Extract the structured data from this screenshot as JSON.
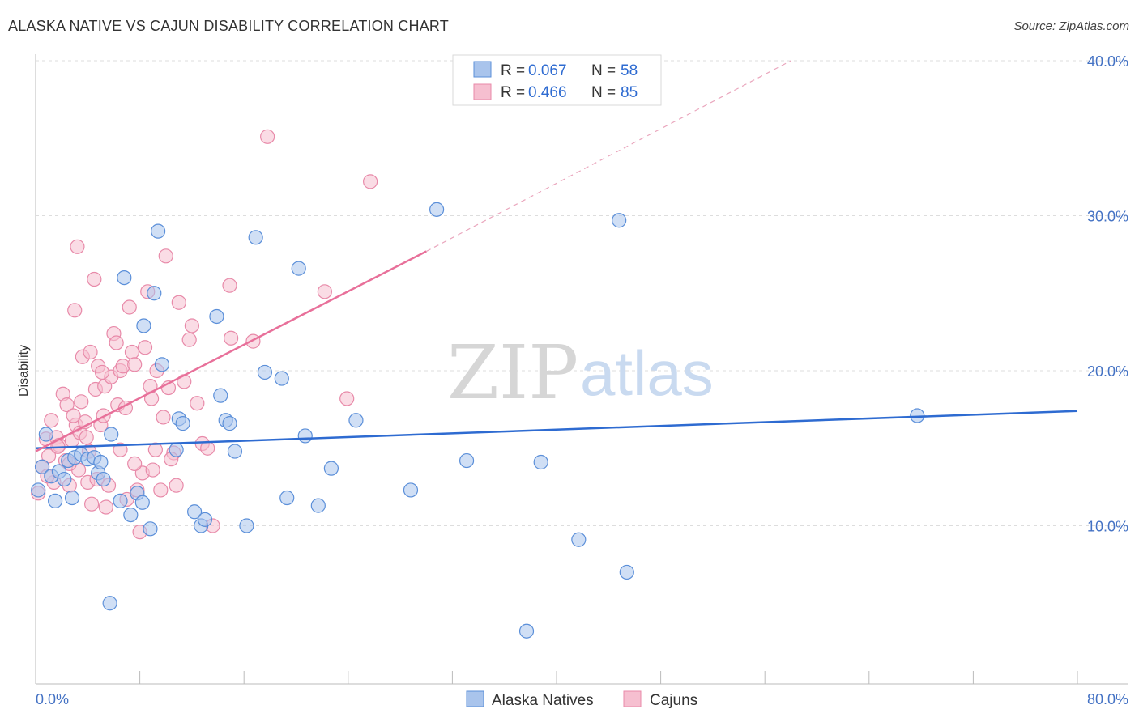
{
  "title": "ALASKA NATIVE VS CAJUN DISABILITY CORRELATION CHART",
  "source": "Source: ZipAtlas.com",
  "watermark": {
    "zip": "ZIP",
    "atlas": "atlas"
  },
  "colors": {
    "blue_fill": "#a9c4ec",
    "blue_stroke": "#5b8fd9",
    "blue_line": "#2e6bd1",
    "pink_fill": "#f6bfd0",
    "pink_stroke": "#e88aa9",
    "pink_line": "#e8709a",
    "grid": "#dddddd",
    "tick_text": "#4472c4"
  },
  "legend": {
    "r_label": "R =",
    "n_label": "N =",
    "rows": [
      {
        "series": "Alaska Natives",
        "r": "0.067",
        "n": "58"
      },
      {
        "series": "Cajuns",
        "r": "0.466",
        "n": "85"
      }
    ]
  },
  "chart_data": {
    "type": "scatter",
    "title": "ALASKA NATIVE VS CAJUN DISABILITY CORRELATION CHART",
    "xlabel": "",
    "ylabel": "Disability",
    "xlim": [
      0,
      80
    ],
    "ylim": [
      0,
      40
    ],
    "x_tick_labels": [
      "0.0%",
      "80.0%"
    ],
    "y_ticks": [
      10,
      20,
      30,
      40
    ],
    "y_tick_labels": [
      "10.0%",
      "20.0%",
      "30.0%",
      "40.0%"
    ],
    "grid": true,
    "legend_position": "top-center",
    "series": [
      {
        "name": "Alaska Natives",
        "color": "#5b8fd9",
        "trend": {
          "x0": 0,
          "y0": 15.0,
          "x1": 80,
          "y1": 17.4
        },
        "points": [
          [
            0.2,
            12.3
          ],
          [
            0.5,
            13.8
          ],
          [
            0.8,
            15.9
          ],
          [
            1.2,
            13.2
          ],
          [
            1.5,
            11.6
          ],
          [
            1.8,
            13.5
          ],
          [
            2.2,
            13.0
          ],
          [
            2.5,
            14.2
          ],
          [
            2.8,
            11.8
          ],
          [
            3.0,
            14.4
          ],
          [
            3.5,
            14.6
          ],
          [
            4.0,
            14.3
          ],
          [
            4.5,
            14.4
          ],
          [
            4.8,
            13.4
          ],
          [
            5.0,
            14.1
          ],
          [
            5.2,
            13.0
          ],
          [
            5.8,
            15.9
          ],
          [
            6.5,
            11.6
          ],
          [
            6.8,
            26.0
          ],
          [
            7.3,
            10.7
          ],
          [
            7.8,
            12.1
          ],
          [
            8.2,
            11.5
          ],
          [
            8.3,
            22.9
          ],
          [
            8.8,
            9.8
          ],
          [
            9.1,
            25.0
          ],
          [
            9.4,
            29.0
          ],
          [
            9.7,
            20.4
          ],
          [
            10.8,
            14.9
          ],
          [
            11.0,
            16.9
          ],
          [
            11.3,
            16.6
          ],
          [
            12.2,
            10.9
          ],
          [
            12.7,
            10.0
          ],
          [
            13.0,
            10.4
          ],
          [
            13.9,
            23.5
          ],
          [
            14.2,
            18.4
          ],
          [
            14.6,
            16.8
          ],
          [
            14.9,
            16.6
          ],
          [
            15.3,
            14.8
          ],
          [
            16.2,
            10.0
          ],
          [
            16.9,
            28.6
          ],
          [
            17.6,
            19.9
          ],
          [
            18.9,
            19.5
          ],
          [
            19.3,
            11.8
          ],
          [
            20.2,
            26.6
          ],
          [
            20.7,
            15.8
          ],
          [
            21.7,
            11.3
          ],
          [
            22.7,
            13.7
          ],
          [
            24.6,
            16.8
          ],
          [
            28.8,
            12.3
          ],
          [
            30.8,
            30.4
          ],
          [
            33.1,
            14.2
          ],
          [
            37.7,
            3.2
          ],
          [
            38.8,
            14.1
          ],
          [
            41.7,
            9.1
          ],
          [
            44.8,
            29.7
          ],
          [
            45.4,
            7.0
          ],
          [
            5.7,
            5.0
          ],
          [
            67.7,
            17.1
          ]
        ]
      },
      {
        "name": "Cajuns",
        "color": "#e88aa9",
        "trend": {
          "x0": 0,
          "y0": 14.8,
          "x1": 30,
          "y1": 27.7,
          "dash_x1": 58,
          "dash_y1": 40
        },
        "points": [
          [
            0.2,
            12.1
          ],
          [
            0.5,
            13.8
          ],
          [
            0.8,
            15.6
          ],
          [
            1.0,
            14.5
          ],
          [
            1.2,
            16.8
          ],
          [
            1.4,
            12.8
          ],
          [
            1.6,
            15.7
          ],
          [
            1.8,
            15.2
          ],
          [
            2.1,
            18.5
          ],
          [
            2.3,
            14.2
          ],
          [
            2.4,
            17.8
          ],
          [
            2.6,
            12.6
          ],
          [
            2.8,
            15.5
          ],
          [
            3.0,
            23.9
          ],
          [
            3.1,
            16.5
          ],
          [
            3.3,
            13.6
          ],
          [
            3.4,
            16.0
          ],
          [
            3.5,
            18.0
          ],
          [
            3.6,
            20.9
          ],
          [
            3.8,
            16.7
          ],
          [
            4.0,
            12.8
          ],
          [
            4.1,
            14.8
          ],
          [
            4.2,
            21.2
          ],
          [
            4.3,
            11.4
          ],
          [
            4.5,
            25.9
          ],
          [
            4.6,
            18.8
          ],
          [
            4.8,
            20.3
          ],
          [
            5.0,
            16.5
          ],
          [
            5.2,
            17.1
          ],
          [
            5.3,
            19.0
          ],
          [
            5.4,
            11.2
          ],
          [
            5.6,
            12.6
          ],
          [
            5.8,
            19.6
          ],
          [
            6.0,
            22.4
          ],
          [
            6.2,
            21.8
          ],
          [
            6.3,
            17.8
          ],
          [
            6.5,
            20.0
          ],
          [
            6.7,
            20.3
          ],
          [
            7.0,
            11.7
          ],
          [
            7.2,
            24.1
          ],
          [
            7.4,
            21.2
          ],
          [
            7.6,
            20.4
          ],
          [
            7.8,
            12.3
          ],
          [
            8.0,
            9.6
          ],
          [
            8.2,
            13.4
          ],
          [
            8.4,
            21.5
          ],
          [
            8.6,
            25.1
          ],
          [
            8.8,
            19.0
          ],
          [
            9.0,
            13.6
          ],
          [
            9.2,
            14.9
          ],
          [
            9.6,
            12.3
          ],
          [
            9.8,
            17.0
          ],
          [
            10.0,
            27.4
          ],
          [
            10.2,
            18.9
          ],
          [
            10.6,
            14.7
          ],
          [
            10.8,
            12.6
          ],
          [
            11.0,
            24.4
          ],
          [
            11.4,
            19.3
          ],
          [
            11.8,
            22.0
          ],
          [
            12.0,
            22.9
          ],
          [
            12.4,
            17.9
          ],
          [
            12.8,
            15.3
          ],
          [
            13.2,
            15.0
          ],
          [
            13.6,
            10.0
          ],
          [
            14.9,
            25.5
          ],
          [
            15.0,
            22.1
          ],
          [
            16.7,
            21.9
          ],
          [
            17.8,
            35.1
          ],
          [
            22.2,
            25.1
          ],
          [
            23.9,
            18.2
          ],
          [
            25.7,
            32.2
          ],
          [
            6.5,
            14.9
          ],
          [
            2.6,
            14.0
          ],
          [
            3.9,
            15.7
          ],
          [
            5.1,
            19.9
          ],
          [
            6.9,
            17.6
          ],
          [
            7.6,
            14.0
          ],
          [
            8.9,
            18.2
          ],
          [
            9.3,
            20.0
          ],
          [
            10.4,
            14.3
          ],
          [
            4.7,
            13.0
          ],
          [
            3.2,
            28.0
          ],
          [
            1.7,
            15.1
          ],
          [
            2.9,
            17.1
          ],
          [
            0.9,
            13.2
          ]
        ]
      }
    ]
  }
}
